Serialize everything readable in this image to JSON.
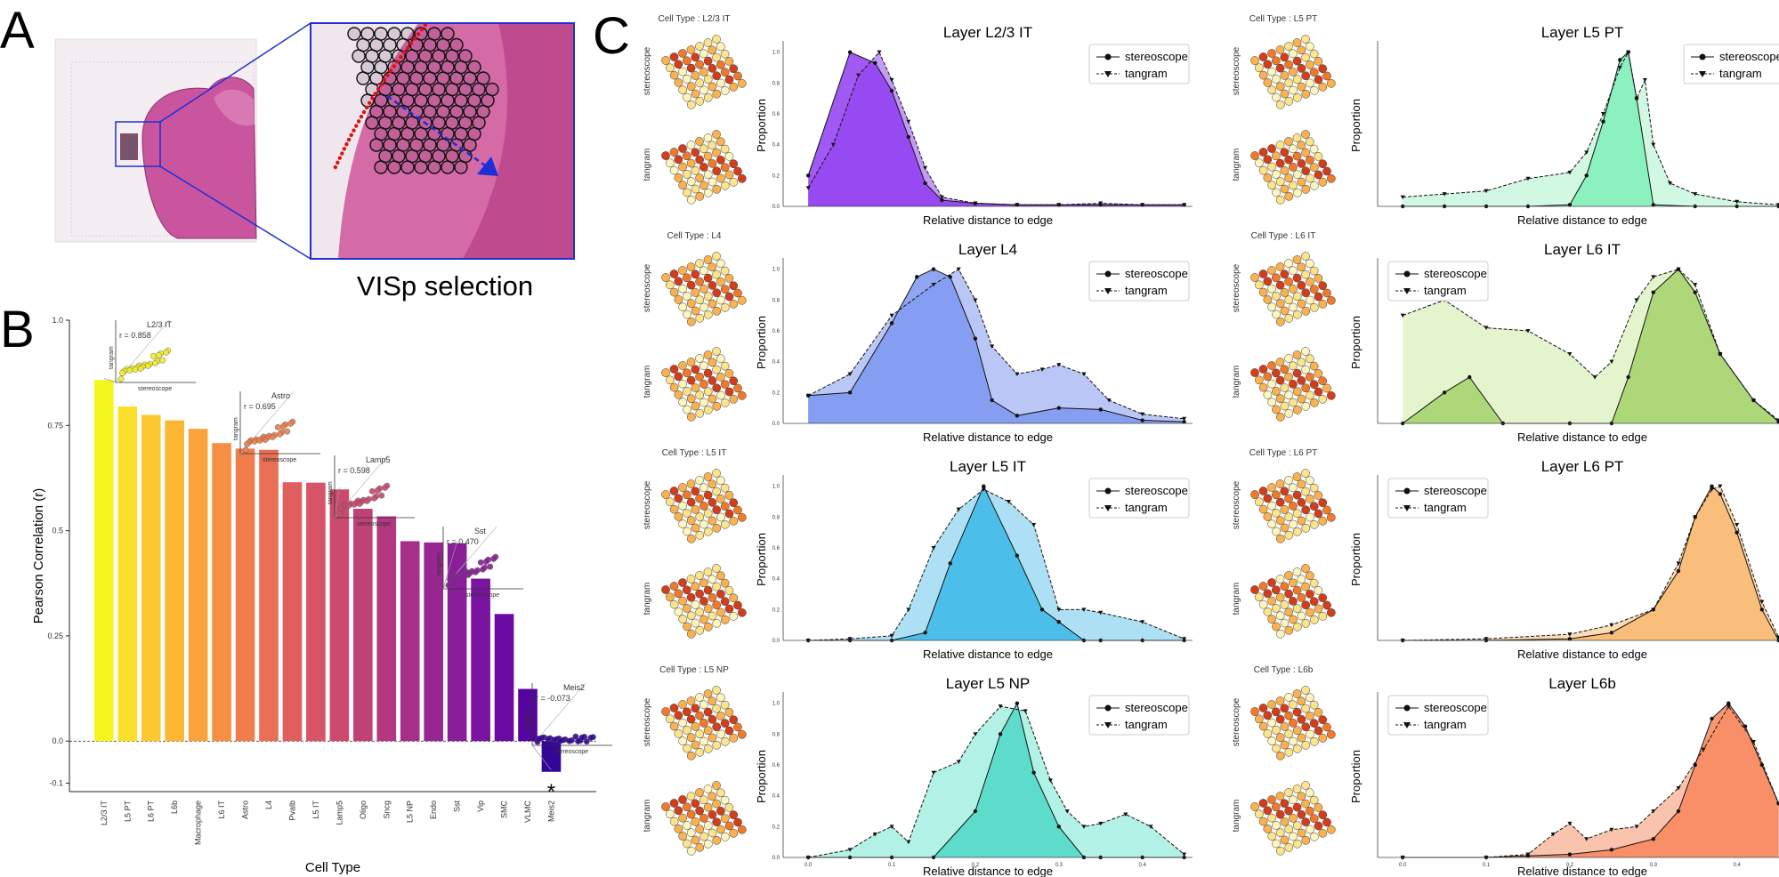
{
  "panel_letters": {
    "a": "A",
    "b": "B",
    "c": "C"
  },
  "panel_a": {
    "caption": "VISp selection"
  },
  "colors": {
    "blue_box": "#1f2ed6",
    "red_dots": "#e01010",
    "tissue": "#c24a9a"
  },
  "chart_data": [
    {
      "type": "bar",
      "panel": "B",
      "xlabel": "Cell Type",
      "ylabel": "Pearson Correlation (r)",
      "ylim": [
        -0.12,
        1.0
      ],
      "yticks": [
        "1.0",
        "0.75",
        "0.5",
        "0.25",
        "0.0",
        "-0.1"
      ],
      "ytick_values": [
        1.0,
        0.75,
        0.5,
        0.25,
        0.0,
        -0.1
      ],
      "categories": [
        "L2/3 IT",
        "L5 PT",
        "L6 PT",
        "L6b",
        "Macrophage",
        "L6 IT",
        "Astro",
        "L4",
        "Pvalb",
        "L5 IT",
        "Lamp5",
        "Oligo",
        "Sncg",
        "L5 NP",
        "Endo",
        "Sst",
        "Vip",
        "SMC",
        "VLMC",
        "Meis2"
      ],
      "values": [
        0.858,
        0.795,
        0.775,
        0.762,
        0.742,
        0.708,
        0.695,
        0.692,
        0.615,
        0.614,
        0.598,
        0.552,
        0.534,
        0.475,
        0.472,
        0.47,
        0.386,
        0.302,
        0.124,
        -0.073
      ],
      "colors": [
        "#f5f51e",
        "#fae02a",
        "#fcc832",
        "#fdb534",
        "#fba23a",
        "#f68f44",
        "#ef7e4c",
        "#e86e55",
        "#df5f5e",
        "#d65466",
        "#cc4a6e",
        "#c04176",
        "#b3387f",
        "#a52f89",
        "#972692",
        "#8a1e99",
        "#7a13a0",
        "#6a0aa2",
        "#55049f",
        "#350498"
      ],
      "marker": "*",
      "insets": [
        {
          "label": "L2/3 IT",
          "r": "r = 0.858",
          "xlabel": "stereoscope",
          "ylabel": "tangram",
          "color": "#f2ee2a"
        },
        {
          "label": "Astro",
          "r": "r = 0.695",
          "xlabel": "stereoscope",
          "ylabel": "tangram",
          "color": "#ef7e4c"
        },
        {
          "label": "Lamp5",
          "r": "r = 0.598",
          "xlabel": "stereoscope",
          "ylabel": "tangram",
          "color": "#cc4a6e"
        },
        {
          "label": "Sst",
          "r": "r = 0.470",
          "xlabel": "stereoscope",
          "ylabel": "tangram",
          "color": "#8a1e99"
        },
        {
          "label": "Meis2",
          "r": "r = -0.073",
          "xlabel": "stereoscope",
          "ylabel": "tangram",
          "color": "#350498"
        }
      ]
    },
    {
      "type": "area",
      "panel": "C",
      "xlabel": "Relative distance to edge",
      "ylabel": "Proportion",
      "xlim": [
        -0.03,
        0.46
      ],
      "ylim": [
        0,
        1.05
      ],
      "xticks": [
        "0.0",
        "0.1",
        "0.2",
        "0.3",
        "0.4"
      ],
      "xtick_values": [
        0.0,
        0.1,
        0.2,
        0.3,
        0.4
      ],
      "yticks": [
        "0.0",
        "0.2",
        "0.4",
        "0.6",
        "0.8",
        "1.0"
      ],
      "ytick_values": [
        0.0,
        0.2,
        0.4,
        0.6,
        0.8,
        1.0
      ],
      "legend": [
        "stereoscope",
        "tangram"
      ],
      "left_labels": {
        "stereoscope": "stereoscope",
        "tangram": "tangram"
      },
      "charts": [
        {
          "title": "Layer L2/3 IT",
          "cell_type": "Cell Type : L2/3 IT",
          "fill1": "#8f3cf0",
          "fill2": "#b98af5",
          "legend_pos": "top-right",
          "x1": [
            0,
            0.05,
            0.08,
            0.1,
            0.12,
            0.14,
            0.16,
            0.2,
            0.25,
            0.3,
            0.35,
            0.4,
            0.45
          ],
          "s1": [
            0.2,
            1.0,
            0.93,
            0.75,
            0.45,
            0.15,
            0.04,
            0.02,
            0.01,
            0.01,
            0.01,
            0.01,
            0.01
          ],
          "x2": [
            0,
            0.03,
            0.06,
            0.085,
            0.1,
            0.12,
            0.14,
            0.16,
            0.2,
            0.25,
            0.3,
            0.35,
            0.4,
            0.45
          ],
          "s2": [
            0.12,
            0.4,
            0.85,
            1.0,
            0.82,
            0.55,
            0.25,
            0.06,
            0.02,
            0.01,
            0.01,
            0.02,
            0.01,
            0.01
          ]
        },
        {
          "title": "Layer L5 PT",
          "cell_type": "Cell Type : L5 PT",
          "fill1": "#7ef0b8",
          "fill2": "#c9f7de",
          "legend_pos": "top-right",
          "x1": [
            0,
            0.05,
            0.1,
            0.15,
            0.2,
            0.22,
            0.24,
            0.26,
            0.27,
            0.28,
            0.3,
            0.35,
            0.4,
            0.45
          ],
          "s1": [
            0,
            0,
            0,
            0,
            0.01,
            0.2,
            0.55,
            0.95,
            1.0,
            0.7,
            0.01,
            0,
            0,
            0
          ],
          "x2": [
            0,
            0.05,
            0.1,
            0.15,
            0.2,
            0.22,
            0.24,
            0.26,
            0.27,
            0.28,
            0.29,
            0.3,
            0.32,
            0.35,
            0.4,
            0.45
          ],
          "s2": [
            0.06,
            0.08,
            0.1,
            0.18,
            0.22,
            0.35,
            0.6,
            0.9,
            1.0,
            0.7,
            0.82,
            0.4,
            0.15,
            0.08,
            0.03,
            0.01
          ]
        },
        {
          "title": "Layer L4",
          "cell_type": "Cell Type : L4",
          "fill1": "#7d97f0",
          "fill2": "#aebdf5",
          "legend_pos": "top-right",
          "x1": [
            0,
            0.05,
            0.1,
            0.13,
            0.15,
            0.17,
            0.2,
            0.22,
            0.25,
            0.3,
            0.35,
            0.4,
            0.45
          ],
          "s1": [
            0.18,
            0.2,
            0.65,
            0.95,
            1.0,
            0.95,
            0.55,
            0.15,
            0.05,
            0.1,
            0.09,
            0.02,
            0.01
          ],
          "x2": [
            0,
            0.05,
            0.1,
            0.15,
            0.18,
            0.2,
            0.22,
            0.25,
            0.28,
            0.3,
            0.33,
            0.36,
            0.4,
            0.45
          ],
          "s2": [
            0.18,
            0.32,
            0.7,
            0.9,
            1.0,
            0.8,
            0.5,
            0.32,
            0.35,
            0.38,
            0.32,
            0.15,
            0.06,
            0.03
          ]
        },
        {
          "title": "Layer L6 IT",
          "cell_type": "Cell Type : L6 IT",
          "fill1": "#a3d16a",
          "fill2": "#dff2c4",
          "legend_pos": "top-left",
          "x1": [
            0,
            0.05,
            0.08,
            0.12,
            0.2,
            0.25,
            0.27,
            0.3,
            0.33,
            0.35,
            0.38,
            0.42,
            0.45
          ],
          "s1": [
            0,
            0.2,
            0.3,
            0,
            0,
            0,
            0.3,
            0.85,
            1.0,
            0.85,
            0.45,
            0.15,
            0.01
          ],
          "x2": [
            0,
            0.05,
            0.1,
            0.15,
            0.2,
            0.23,
            0.25,
            0.28,
            0.3,
            0.33,
            0.35,
            0.38,
            0.42,
            0.45
          ],
          "s2": [
            0.7,
            0.8,
            0.62,
            0.6,
            0.45,
            0.3,
            0.4,
            0.8,
            0.95,
            1.0,
            0.9,
            0.45,
            0.15,
            0.02
          ]
        },
        {
          "title": "Layer L5 IT",
          "cell_type": "Cell Type : L5 IT",
          "fill1": "#3ab8e8",
          "fill2": "#9fdaf3",
          "legend_pos": "top-right",
          "x1": [
            0,
            0.05,
            0.1,
            0.14,
            0.17,
            0.21,
            0.25,
            0.28,
            0.3,
            0.33,
            0.35,
            0.4,
            0.45
          ],
          "s1": [
            0,
            0,
            0,
            0.05,
            0.5,
            1.0,
            0.55,
            0.2,
            0.12,
            0,
            0,
            0,
            0
          ],
          "x2": [
            0,
            0.05,
            0.1,
            0.12,
            0.15,
            0.18,
            0.21,
            0.24,
            0.27,
            0.3,
            0.33,
            0.35,
            0.4,
            0.45
          ],
          "s2": [
            0,
            0.01,
            0.03,
            0.2,
            0.6,
            0.85,
            0.98,
            0.9,
            0.75,
            0.2,
            0.2,
            0.18,
            0.12,
            0.01
          ]
        },
        {
          "title": "Layer L6 PT",
          "cell_type": "Cell Type : L6 PT",
          "fill1": "#f8b86e",
          "fill2": "#fbd6a8",
          "legend_pos": "top-left",
          "x1": [
            0,
            0.1,
            0.2,
            0.25,
            0.3,
            0.33,
            0.35,
            0.37,
            0.38,
            0.4,
            0.43,
            0.45
          ],
          "s1": [
            0,
            0,
            0.01,
            0.05,
            0.2,
            0.45,
            0.8,
            1.0,
            0.95,
            0.7,
            0.2,
            0
          ],
          "x2": [
            0,
            0.1,
            0.2,
            0.25,
            0.3,
            0.33,
            0.35,
            0.37,
            0.38,
            0.4,
            0.43,
            0.45
          ],
          "s2": [
            0,
            0.01,
            0.04,
            0.1,
            0.2,
            0.5,
            0.8,
            0.98,
            1.0,
            0.75,
            0.25,
            0.02
          ]
        },
        {
          "title": "Layer L5 NP",
          "cell_type": "Cell Type : L5 NP",
          "fill1": "#4fd8c6",
          "fill2": "#a5eee2",
          "legend_pos": "top-right",
          "x1": [
            0,
            0.05,
            0.1,
            0.15,
            0.2,
            0.23,
            0.25,
            0.27,
            0.3,
            0.33,
            0.35,
            0.4,
            0.45
          ],
          "s1": [
            0,
            0,
            0,
            0,
            0.3,
            0.8,
            1.0,
            0.55,
            0.2,
            0,
            0,
            0,
            0
          ],
          "x2": [
            0,
            0.05,
            0.08,
            0.1,
            0.12,
            0.15,
            0.18,
            0.2,
            0.23,
            0.26,
            0.29,
            0.31,
            0.33,
            0.35,
            0.38,
            0.41,
            0.45
          ],
          "s2": [
            0,
            0.05,
            0.15,
            0.2,
            0.1,
            0.55,
            0.62,
            0.8,
            0.98,
            0.95,
            0.5,
            0.3,
            0.2,
            0.22,
            0.28,
            0.2,
            0.02
          ]
        },
        {
          "title": "Layer L6b",
          "cell_type": "Cell Type : L6b",
          "fill1": "#f7865a",
          "fill2": "#f9b9a0",
          "legend_pos": "top-left",
          "x1": [
            0,
            0.1,
            0.15,
            0.2,
            0.25,
            0.3,
            0.33,
            0.35,
            0.37,
            0.39,
            0.41,
            0.43,
            0.45
          ],
          "s1": [
            0,
            0,
            0.01,
            0.02,
            0.05,
            0.12,
            0.3,
            0.6,
            0.9,
            1.0,
            0.85,
            0.6,
            0.35
          ],
          "x2": [
            0,
            0.1,
            0.15,
            0.18,
            0.2,
            0.22,
            0.25,
            0.28,
            0.3,
            0.33,
            0.36,
            0.39,
            0.42,
            0.45
          ],
          "s2": [
            0,
            0,
            0.02,
            0.15,
            0.22,
            0.12,
            0.18,
            0.2,
            0.3,
            0.45,
            0.7,
            0.98,
            0.75,
            0.35
          ]
        }
      ]
    }
  ]
}
